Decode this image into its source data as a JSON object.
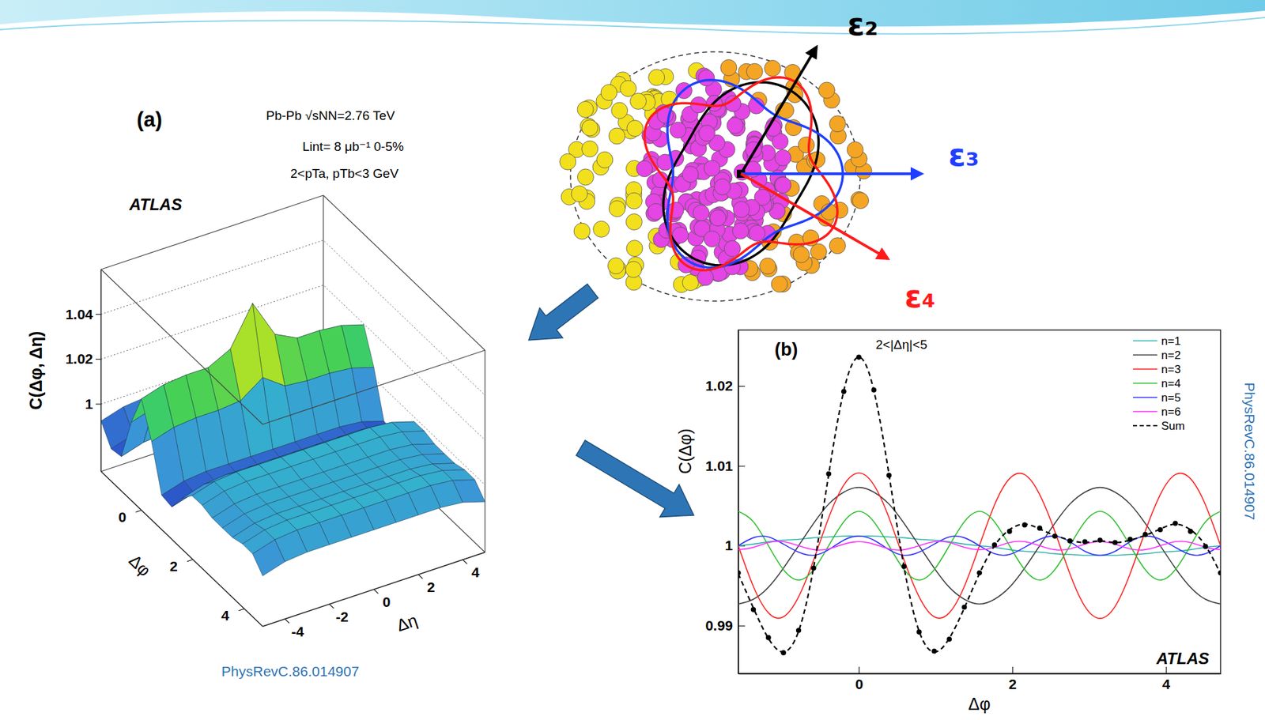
{
  "diagram": {
    "labels": [
      {
        "text": "ε₂",
        "color": "#000000"
      },
      {
        "text": "ε₃",
        "color": "#1f3fff"
      },
      {
        "text": "ε₄",
        "color": "#ff1a1a"
      }
    ]
  },
  "chart_data": [
    {
      "type": "surface",
      "panel": "(a)",
      "annotations": [
        "Pb-Pb √sNN=2.76 TeV",
        "Lint= 8 μb⁻¹ 0-5%",
        "2<pTa, pTb<3 GeV",
        "ATLAS"
      ],
      "xlabel": "Δφ",
      "ylabel": "Δη",
      "zlabel": "C(Δφ, Δη)",
      "x": [
        -1.571,
        -1.178,
        -0.785,
        -0.393,
        0,
        0.393,
        0.785,
        1.178,
        1.571,
        1.963,
        2.356,
        2.749,
        3.142,
        3.534,
        3.927,
        4.32,
        4.712
      ],
      "y": [
        -5,
        -4,
        -3,
        -2,
        -1,
        0,
        1,
        2,
        3,
        4,
        5
      ],
      "z": [
        [
          0.9925,
          0.9844,
          0.9853,
          1.0049,
          1.0196,
          1.0049,
          0.9853,
          0.9844,
          0.9925,
          0.998,
          0.9981,
          0.9967,
          0.9966,
          0.9967,
          0.9981,
          0.998,
          0.9925
        ],
        [
          0.9955,
          0.9874,
          0.9883,
          1.0079,
          1.0226,
          1.0079,
          0.9883,
          0.9874,
          0.9955,
          1.001,
          1.0011,
          0.9997,
          0.9996,
          0.9997,
          1.0011,
          1.001,
          0.9955
        ],
        [
          0.9965,
          0.9884,
          0.9893,
          1.0089,
          1.0236,
          1.0089,
          0.9893,
          0.9884,
          0.9965,
          1.002,
          1.0021,
          1.0007,
          1.0006,
          1.0007,
          1.0021,
          1.002,
          0.9965
        ],
        [
          0.9965,
          0.9884,
          0.9893,
          1.0089,
          1.0236,
          1.0089,
          0.9893,
          0.9884,
          0.9965,
          1.002,
          1.0021,
          1.0007,
          1.0006,
          1.0007,
          1.0021,
          1.002,
          0.9965
        ],
        [
          0.9965,
          0.9884,
          0.9893,
          1.0099,
          1.0286,
          1.0099,
          0.9893,
          0.9884,
          0.9965,
          1.002,
          1.0021,
          1.0007,
          1.0006,
          1.0007,
          1.0021,
          1.002,
          0.9965
        ],
        [
          0.9965,
          0.9884,
          0.9893,
          1.0169,
          1.0456,
          1.0169,
          0.9893,
          0.9884,
          0.9965,
          1.002,
          1.0021,
          1.0007,
          1.0006,
          1.0007,
          1.0021,
          1.002,
          0.9965
        ],
        [
          0.9965,
          0.9884,
          0.9893,
          1.0099,
          1.0286,
          1.0099,
          0.9893,
          0.9884,
          0.9965,
          1.002,
          1.0021,
          1.0007,
          1.0006,
          1.0007,
          1.0021,
          1.002,
          0.9965
        ],
        [
          0.9965,
          0.9884,
          0.9893,
          1.0089,
          1.0236,
          1.0089,
          0.9893,
          0.9884,
          0.9965,
          1.002,
          1.0021,
          1.0007,
          1.0006,
          1.0007,
          1.0021,
          1.002,
          0.9965
        ],
        [
          0.9965,
          0.9884,
          0.9893,
          1.0089,
          1.0236,
          1.0089,
          0.9893,
          0.9884,
          0.9965,
          1.002,
          1.0021,
          1.0007,
          1.0006,
          1.0007,
          1.0021,
          1.002,
          0.9965
        ],
        [
          0.9955,
          0.9874,
          0.9883,
          1.0079,
          1.0226,
          1.0079,
          0.9883,
          0.9874,
          0.9955,
          1.001,
          1.0011,
          0.9997,
          0.9996,
          0.9997,
          1.0011,
          1.001,
          0.9955
        ],
        [
          0.9925,
          0.9844,
          0.9853,
          1.0049,
          1.0196,
          1.0049,
          0.9853,
          0.9844,
          0.9925,
          0.998,
          0.9981,
          0.9967,
          0.9966,
          0.9967,
          0.9981,
          0.998,
          0.9925
        ]
      ],
      "xlim": [
        -1.571,
        4.712
      ],
      "ylim": [
        -5,
        5
      ],
      "zlim": [
        0.97,
        1.06
      ],
      "xticks": [
        0,
        2,
        4
      ],
      "yticks": [
        -4,
        -2,
        0,
        2,
        4
      ],
      "zticks": [
        1,
        1.02,
        1.04
      ],
      "source": "PhysRevC.86.014907"
    },
    {
      "type": "line",
      "panel": "(b)",
      "annotations": [
        "2<|Δη|<5",
        "ATLAS"
      ],
      "xlabel": "Δφ",
      "ylabel": "C(Δφ)",
      "x": [
        -1.571,
        -1.374,
        -1.178,
        -0.982,
        -0.785,
        -0.589,
        -0.393,
        -0.196,
        0,
        0.196,
        0.393,
        0.589,
        0.785,
        0.982,
        1.178,
        1.374,
        1.571,
        1.767,
        1.963,
        2.16,
        2.356,
        2.553,
        2.749,
        2.945,
        3.142,
        3.338,
        3.534,
        3.731,
        3.927,
        4.123,
        4.32,
        4.516,
        4.712
      ],
      "series": [
        {
          "name": "n=1",
          "color": "#35b4ae",
          "line_style": "solid",
          "values": [
            1,
            1.0002,
            1.0005,
            1.0007,
            1.0008,
            1.001,
            1.0011,
            1.0012,
            1.0012,
            1.0012,
            1.0011,
            1.001,
            1.0008,
            1.0007,
            1.0005,
            1.0002,
            1,
            0.9998,
            0.9995,
            0.9993,
            0.9992,
            0.999,
            0.9989,
            0.9988,
            0.9988,
            0.9988,
            0.9989,
            0.999,
            0.9992,
            0.9993,
            0.9995,
            0.9998,
            1
          ]
        },
        {
          "name": "n=2",
          "color": "#404040",
          "line_style": "solid",
          "values": [
            0.9927,
            0.9933,
            0.9948,
            0.9972,
            1,
            1.0028,
            1.0052,
            1.0067,
            1.0073,
            1.0067,
            1.0052,
            1.0028,
            1,
            0.9972,
            0.9948,
            0.9933,
            0.9927,
            0.9933,
            0.9948,
            0.9972,
            1,
            1.0028,
            1.0052,
            1.0067,
            1.0073,
            1.0067,
            1.0052,
            1.0028,
            1,
            0.9972,
            0.9948,
            0.9933,
            0.9927
          ]
        },
        {
          "name": "n=3",
          "color": "#ff2020",
          "line_style": "solid",
          "values": [
            1,
            0.9949,
            0.9916,
            0.9911,
            0.9936,
            0.9982,
            1.0035,
            1.0076,
            1.0091,
            1.0076,
            1.0035,
            0.9982,
            0.9936,
            0.9911,
            0.9916,
            0.9949,
            1,
            1.0051,
            1.0084,
            1.0089,
            1.0064,
            1.0018,
            0.9965,
            0.9924,
            0.9909,
            0.9924,
            0.9965,
            1.0018,
            1.0064,
            1.0089,
            1.0084,
            1.0051,
            1
          ]
        },
        {
          "name": "n=4",
          "color": "#2fbf2f",
          "line_style": "solid",
          "values": [
            1.0043,
            1.003,
            1,
            0.997,
            0.9957,
            0.997,
            1,
            1.003,
            1.0043,
            1.003,
            1,
            0.997,
            0.9957,
            0.997,
            1,
            1.003,
            1.0043,
            1.003,
            1,
            0.997,
            0.9957,
            0.997,
            1,
            1.003,
            1.0043,
            1.003,
            1,
            0.997,
            0.9957,
            0.997,
            1,
            1.003,
            1.0043
          ]
        },
        {
          "name": "n=5",
          "color": "#3030ff",
          "line_style": "solid",
          "values": [
            1,
            1.001,
            1.0011,
            1.0002,
            0.9992,
            0.9988,
            0.9995,
            1.0007,
            1.0012,
            1.0007,
            0.9995,
            0.9988,
            0.9992,
            1.0002,
            1.0011,
            1.001,
            1,
            0.999,
            0.9989,
            0.9998,
            1.0008,
            1.0012,
            1.0005,
            0.9993,
            0.9988,
            0.9993,
            1.0005,
            1.0012,
            1.0008,
            0.9998,
            0.9989,
            0.999,
            1
          ]
        },
        {
          "name": "n=6",
          "color": "#ff30ff",
          "line_style": "solid",
          "values": [
            0.9995,
            0.9998,
            1.0004,
            1.0005,
            1,
            0.9995,
            0.9996,
            1.0002,
            1.0005,
            1.0002,
            0.9996,
            0.9995,
            1,
            1.0005,
            1.0004,
            0.9998,
            0.9995,
            0.9998,
            1.0004,
            1.0005,
            1,
            0.9995,
            0.9996,
            1.0002,
            1.0005,
            1.0002,
            0.9996,
            0.9995,
            1,
            1.0005,
            1.0004,
            0.9998,
            0.9995
          ]
        },
        {
          "name": "Sum",
          "color": "#000000",
          "line_style": "dashed",
          "values": [
            0.9965,
            0.9922,
            0.9884,
            0.9867,
            0.9893,
            0.9973,
            1.0089,
            1.0194,
            1.0236,
            1.0194,
            1.0089,
            0.9973,
            0.9893,
            0.9867,
            0.9884,
            0.9922,
            0.9965,
            1,
            1.002,
            1.0027,
            1.0021,
            1.0013,
            1.0007,
            1.0004,
            1.0006,
            1.0004,
            1.0007,
            1.0013,
            1.0021,
            1.0027,
            1.002,
            1,
            0.9965
          ]
        },
        {
          "type": "scatter",
          "marker": "circle",
          "color": "#000000",
          "values": [
            0.9966,
            0.992,
            0.9885,
            0.9866,
            0.9894,
            0.9972,
            1.009,
            1.0193,
            1.0236,
            1.0195,
            1.0088,
            0.9974,
            0.9892,
            0.9868,
            0.9883,
            0.9923,
            0.9966,
            1.0001,
            1.0018,
            1.0026,
            1.0022,
            1.0012,
            1.0006,
            1.0005,
            1.0007,
            1.0004,
            1.0008,
            1.0014,
            1.002,
            1.0028,
            1.0018,
            0.9999,
            0.9966
          ]
        }
      ],
      "xlim": [
        -1.571,
        4.712
      ],
      "ylim": [
        0.984,
        1.027
      ],
      "xticks": [
        0,
        2,
        4
      ],
      "yticks": [
        0.99,
        1,
        1.01,
        1.02
      ],
      "legend": "top-right",
      "source": "PhysRevC.86.014907"
    }
  ]
}
